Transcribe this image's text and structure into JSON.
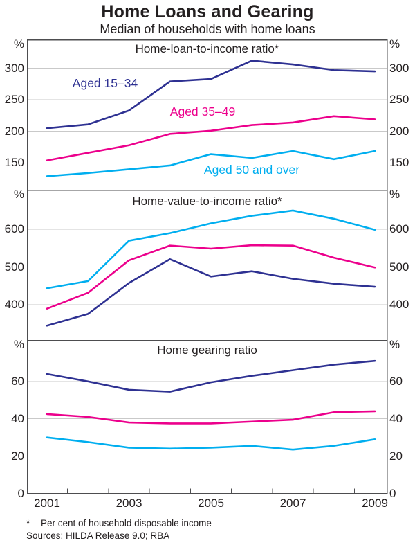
{
  "page": {
    "title": "Home Loans and Gearing",
    "subtitle": "Median of households with home loans",
    "footnote_marker": "*",
    "footnote_text": "Per cent of household disposable income",
    "sources": "Sources: HILDA Release 9.0; RBA"
  },
  "colors": {
    "aged_15_34": "#2E3192",
    "aged_35_49": "#EC008C",
    "aged_50_over": "#00AEEF",
    "text": "#231F20",
    "gridline": "#C9C9C9",
    "frame": "#4D4D4F"
  },
  "axis": {
    "unit_label": "%",
    "x_tick_labels": [
      "2001",
      "2003",
      "2005",
      "2007",
      "2009"
    ]
  },
  "chart_data": [
    {
      "type": "line",
      "title": "Home-loan-to-income ratio*",
      "unit": "%",
      "ylim": [
        107,
        345
      ],
      "yticks": [
        150,
        200,
        250,
        300
      ],
      "x": [
        2001,
        2002,
        2003,
        2004,
        2005,
        2006,
        2007,
        2008,
        2009
      ],
      "series": [
        {
          "name": "Aged 15–34",
          "color": "#2E3192",
          "values": [
            205,
            211,
            233,
            279,
            283,
            312,
            306,
            297,
            295
          ]
        },
        {
          "name": "Aged 35–49",
          "color": "#EC008C",
          "values": [
            154,
            166,
            178,
            196,
            201,
            210,
            214,
            224,
            219
          ]
        },
        {
          "name": "Aged 50 and over",
          "color": "#00AEEF",
          "values": [
            129,
            134,
            140,
            146,
            164,
            158,
            169,
            156,
            169
          ]
        }
      ]
    },
    {
      "type": "line",
      "title": "Home-value-to-income ratio*",
      "unit": "%",
      "ylim": [
        306,
        704
      ],
      "yticks": [
        400,
        500,
        600
      ],
      "x": [
        2001,
        2002,
        2003,
        2004,
        2005,
        2006,
        2007,
        2008,
        2009
      ],
      "series": [
        {
          "name": "Aged 15–34",
          "color": "#2E3192",
          "values": [
            345,
            376,
            458,
            521,
            475,
            489,
            469,
            456,
            448
          ]
        },
        {
          "name": "Aged 35–49",
          "color": "#EC008C",
          "values": [
            390,
            432,
            518,
            557,
            549,
            558,
            557,
            525,
            499
          ]
        },
        {
          "name": "Aged 50 and over",
          "color": "#00AEEF",
          "values": [
            444,
            463,
            570,
            590,
            616,
            636,
            650,
            628,
            599
          ]
        }
      ]
    },
    {
      "type": "line",
      "title": "Home gearing ratio",
      "unit": "%",
      "ylim": [
        0,
        82
      ],
      "yticks": [
        0,
        20,
        40,
        60
      ],
      "x": [
        2001,
        2002,
        2003,
        2004,
        2005,
        2006,
        2007,
        2008,
        2009
      ],
      "series": [
        {
          "name": "Aged 15–34",
          "color": "#2E3192",
          "values": [
            64,
            60,
            55.5,
            54.5,
            59.5,
            63,
            66,
            69,
            71
          ]
        },
        {
          "name": "Aged 35–49",
          "color": "#EC008C",
          "values": [
            42.5,
            41,
            38,
            37.5,
            37.5,
            38.5,
            39.5,
            43.5,
            44
          ]
        },
        {
          "name": "Aged 50 and over",
          "color": "#00AEEF",
          "values": [
            30,
            27.5,
            24.5,
            24,
            24.5,
            25.5,
            23.5,
            25.5,
            29
          ]
        }
      ]
    }
  ]
}
